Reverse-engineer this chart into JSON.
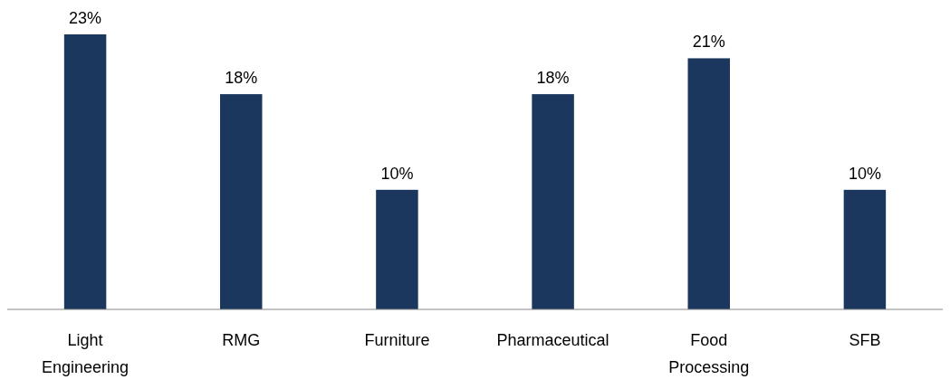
{
  "chart_data": {
    "type": "bar",
    "categories": [
      "Light Engineering",
      "RMG",
      "Furniture",
      "Pharmaceutical",
      "Food Processing",
      "SFB"
    ],
    "values": [
      23,
      18,
      10,
      18,
      21,
      10
    ],
    "color": "#1b375e",
    "data_labels": true,
    "value_labels": [
      "23%",
      "18%",
      "10%",
      "18%",
      "21%",
      "10%"
    ]
  }
}
